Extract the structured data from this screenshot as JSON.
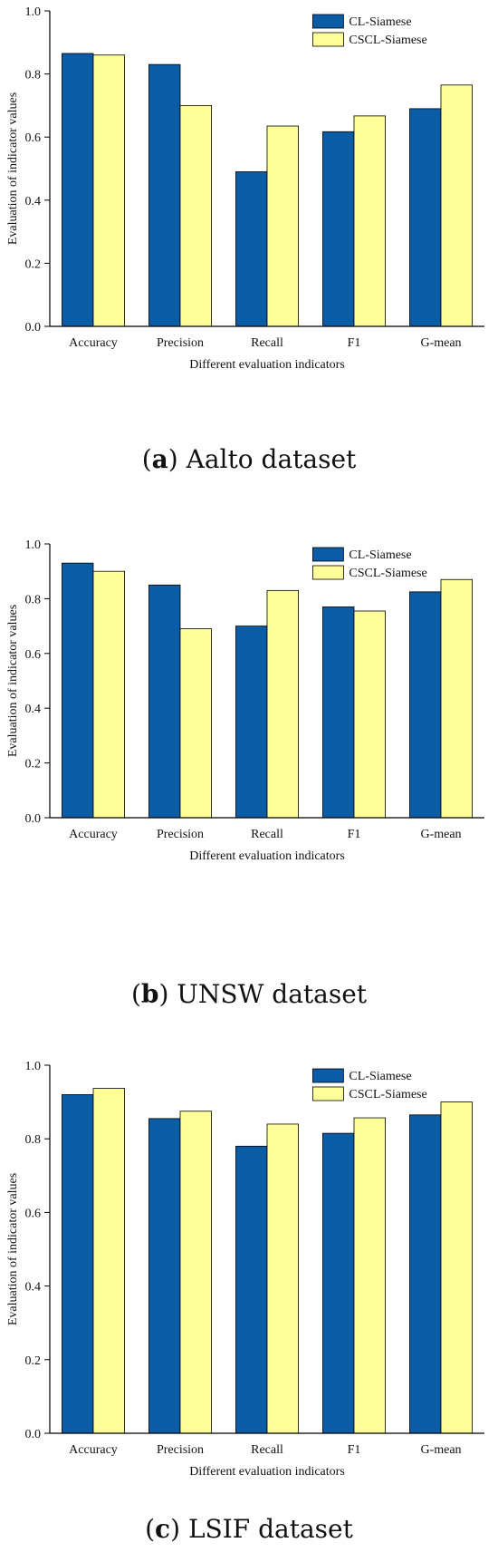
{
  "colors": {
    "cl": "#0a5ca6",
    "cscl": "#ffff99",
    "stroke": "#000000"
  },
  "chart_data": [
    {
      "type": "bar",
      "caption_letter": "a",
      "caption_rest": " Aalto dataset",
      "categories": [
        "Accuracy",
        "Precision",
        "Recall",
        "F1",
        "G-mean"
      ],
      "series": [
        {
          "name": "CL-Siamese",
          "values": [
            0.865,
            0.83,
            0.49,
            0.617,
            0.69
          ]
        },
        {
          "name": "CSCL-Siamese",
          "values": [
            0.86,
            0.7,
            0.635,
            0.667,
            0.765
          ]
        }
      ],
      "xlabel": "Different evaluation indicators",
      "ylabel": "Evaluation of indicator values",
      "ylim": [
        0,
        1.0
      ],
      "yticks": [
        "0.0",
        "0.2",
        "0.4",
        "0.6",
        "0.8",
        "1.0"
      ],
      "legend": "top-right"
    },
    {
      "type": "bar",
      "caption_letter": "b",
      "caption_rest": " UNSW dataset",
      "categories": [
        "Accuracy",
        "Precision",
        "Recall",
        "F1",
        "G-mean"
      ],
      "series": [
        {
          "name": "CL-Siamese",
          "values": [
            0.93,
            0.85,
            0.7,
            0.77,
            0.825
          ]
        },
        {
          "name": "CSCL-Siamese",
          "values": [
            0.9,
            0.69,
            0.83,
            0.755,
            0.87
          ]
        }
      ],
      "xlabel": "Different evaluation indicators",
      "ylabel": "Evaluation of indicator values",
      "ylim": [
        0,
        1.0
      ],
      "yticks": [
        "0.0",
        "0.2",
        "0.4",
        "0.6",
        "0.8",
        "1.0"
      ],
      "legend": "top-right"
    },
    {
      "type": "bar",
      "caption_letter": "c",
      "caption_rest": " LSIF dataset",
      "categories": [
        "Accuracy",
        "Precision",
        "Recall",
        "F1",
        "G-mean"
      ],
      "series": [
        {
          "name": "CL-Siamese",
          "values": [
            0.92,
            0.855,
            0.78,
            0.815,
            0.865
          ]
        },
        {
          "name": "CSCL-Siamese",
          "values": [
            0.937,
            0.875,
            0.84,
            0.857,
            0.9
          ]
        }
      ],
      "xlabel": "Different evaluation indicators",
      "ylabel": "Evaluation of indicator values",
      "ylim": [
        0,
        1.0
      ],
      "yticks": [
        "0.0",
        "0.2",
        "0.4",
        "0.6",
        "0.8",
        "1.0"
      ],
      "legend": "top-right"
    }
  ]
}
